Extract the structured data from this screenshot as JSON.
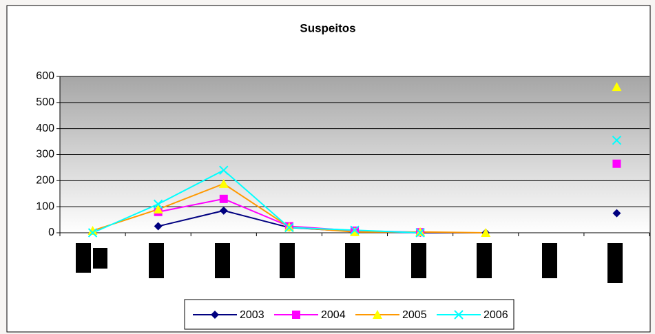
{
  "chart_data": {
    "type": "line",
    "title": "Suspeitos",
    "categories": [
      null,
      null,
      null,
      null,
      null,
      null,
      null,
      null,
      null
    ],
    "series": [
      {
        "name": "2003",
        "color": "#000080",
        "marker": "diamond",
        "marker_color": "#000080",
        "values": [
          null,
          25,
          85,
          20,
          5,
          0,
          0,
          null,
          75
        ]
      },
      {
        "name": "2004",
        "color": "#ff00ff",
        "marker": "square",
        "marker_color": "#ff00ff",
        "values": [
          null,
          80,
          130,
          25,
          8,
          2,
          null,
          null,
          265
        ]
      },
      {
        "name": "2005",
        "color": "#ff9900",
        "marker": "triangle",
        "marker_color": "#ffff00",
        "values": [
          8,
          90,
          188,
          22,
          3,
          3,
          0,
          null,
          560
        ]
      },
      {
        "name": "2006",
        "color": "#00ffff",
        "marker": "x",
        "marker_color": "#00ffff",
        "values": [
          0,
          110,
          240,
          20,
          10,
          0,
          null,
          null,
          355
        ]
      }
    ],
    "ylim": [
      0,
      600
    ],
    "yticks": [
      0,
      100,
      200,
      300,
      400,
      500,
      600
    ],
    "grid": true,
    "legend": "bottom"
  }
}
